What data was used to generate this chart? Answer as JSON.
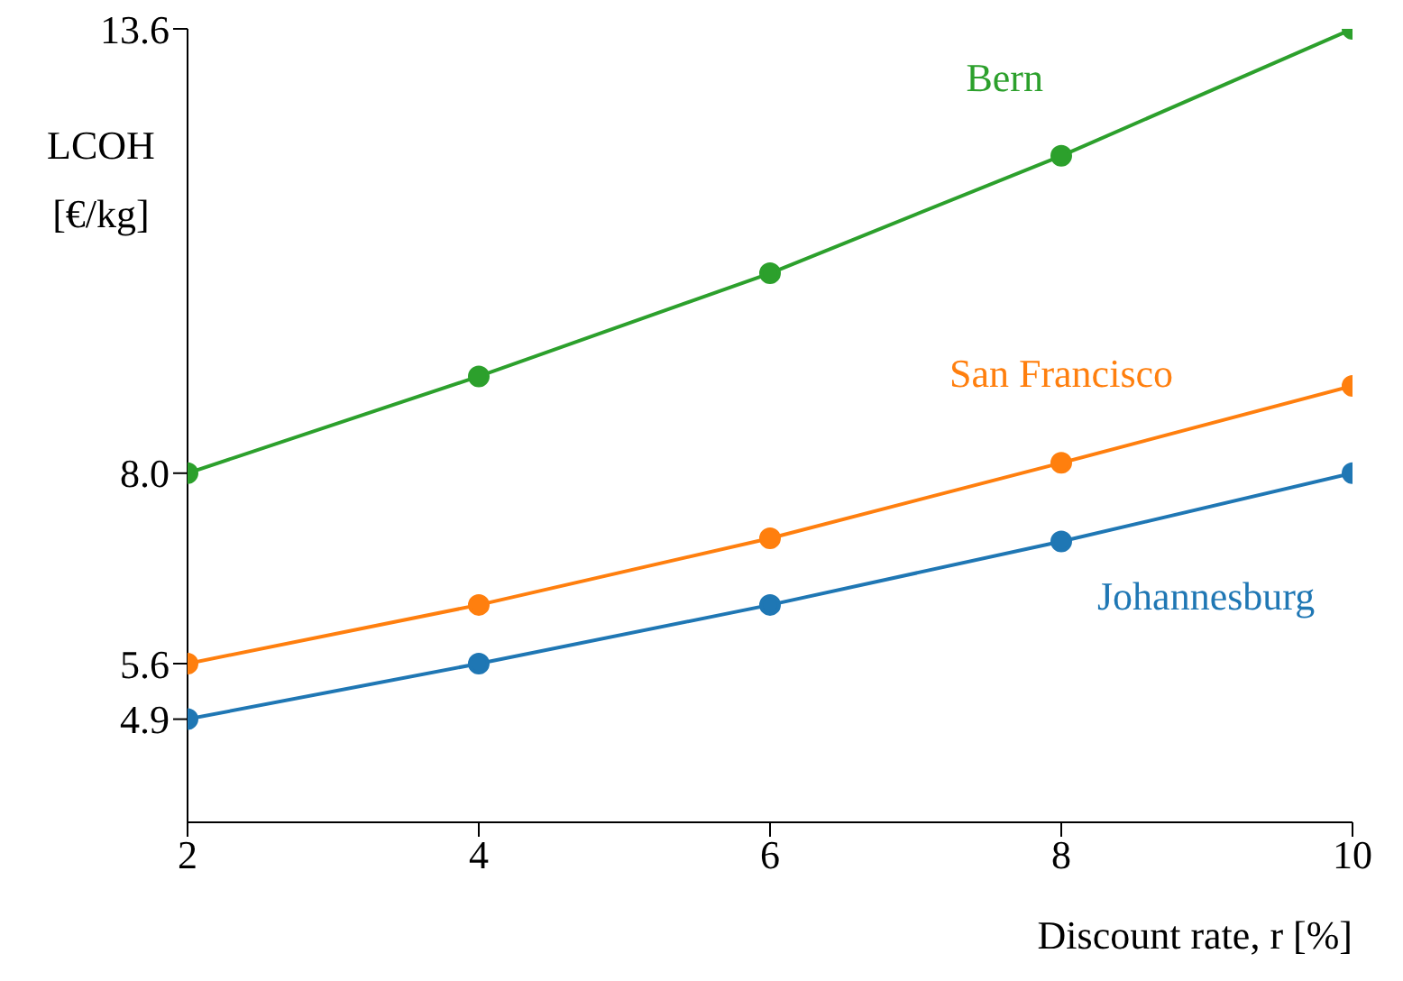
{
  "chart_data": {
    "type": "line",
    "xlabel": "Discount rate, r [%]",
    "ylabel": "LCOH [€/kg]",
    "x": [
      2,
      4,
      6,
      8,
      10
    ],
    "series": [
      {
        "name": "Johannesburg",
        "color": "#1f77b4",
        "values": [
          4.9,
          5.6,
          6.34,
          7.14,
          8.0
        ]
      },
      {
        "name": "San Francisco",
        "color": "#ff7f0e",
        "values": [
          5.6,
          6.34,
          7.18,
          8.13,
          9.1
        ]
      },
      {
        "name": "Bern",
        "color": "#2ca02c",
        "values": [
          8.0,
          9.22,
          10.52,
          12.0,
          13.6
        ]
      }
    ],
    "xlim": [
      2,
      10
    ],
    "xticks": [
      2,
      4,
      6,
      8,
      10
    ],
    "ylim": [
      3.6,
      13.6
    ],
    "yticks": [
      4.9,
      5.6,
      {
        "value": 8,
        "label": "8.0"
      },
      13.6
    ],
    "marker": "circle",
    "grid": false,
    "legend": false
  }
}
